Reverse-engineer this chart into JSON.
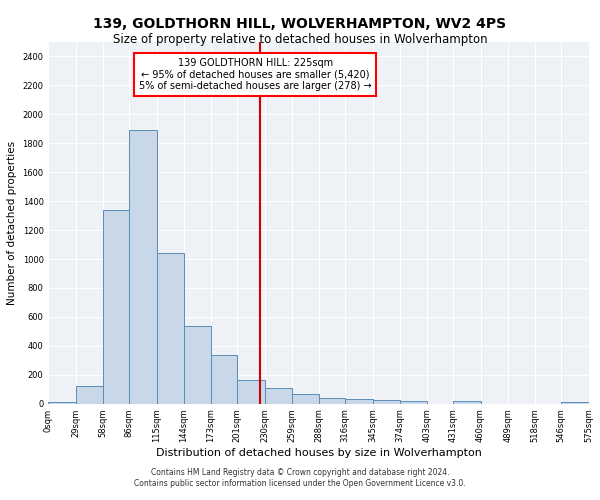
{
  "title": "139, GOLDTHORN HILL, WOLVERHAMPTON, WV2 4PS",
  "subtitle": "Size of property relative to detached houses in Wolverhampton",
  "xlabel": "Distribution of detached houses by size in Wolverhampton",
  "ylabel": "Number of detached properties",
  "bar_color": "#c8d8e8",
  "bar_edge_color": "#5b8db8",
  "background_color": "#eef2f7",
  "annotation_text": "139 GOLDTHORN HILL: 225sqm\n← 95% of detached houses are smaller (5,420)\n5% of semi-detached houses are larger (278) →",
  "vline_x": 225,
  "vline_color": "#cc0000",
  "bin_edges": [
    0,
    29,
    58,
    86,
    115,
    144,
    173,
    201,
    230,
    259,
    288,
    316,
    345,
    374,
    403,
    431,
    460,
    489,
    518,
    546,
    575
  ],
  "bin_labels": [
    "0sqm",
    "29sqm",
    "58sqm",
    "86sqm",
    "115sqm",
    "144sqm",
    "173sqm",
    "201sqm",
    "230sqm",
    "259sqm",
    "288sqm",
    "316sqm",
    "345sqm",
    "374sqm",
    "403sqm",
    "431sqm",
    "460sqm",
    "489sqm",
    "518sqm",
    "546sqm",
    "575sqm"
  ],
  "bar_heights": [
    15,
    120,
    1340,
    1890,
    1040,
    540,
    335,
    165,
    110,
    65,
    40,
    30,
    28,
    20,
    0,
    20,
    0,
    0,
    0,
    15
  ],
  "ylim": [
    0,
    2500
  ],
  "yticks": [
    0,
    200,
    400,
    600,
    800,
    1000,
    1200,
    1400,
    1600,
    1800,
    2000,
    2200,
    2400
  ],
  "footer_line1": "Contains HM Land Registry data © Crown copyright and database right 2024.",
  "footer_line2": "Contains public sector information licensed under the Open Government Licence v3.0.",
  "title_fontsize": 10,
  "subtitle_fontsize": 8.5,
  "xlabel_fontsize": 8,
  "ylabel_fontsize": 7.5,
  "tick_fontsize": 6,
  "annotation_fontsize": 7,
  "footer_fontsize": 5.5
}
